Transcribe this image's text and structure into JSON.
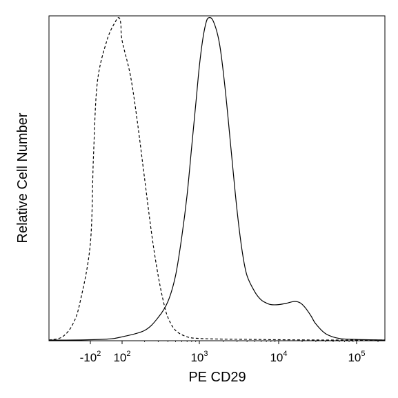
{
  "chart_data": {
    "type": "line",
    "title": "",
    "xlabel": "PE CD29",
    "ylabel": "Relative Cell Number",
    "x_scale": "biexponential",
    "xlim": [
      -500,
      250000
    ],
    "ylim": [
      0,
      1
    ],
    "grid": false,
    "legend": "none",
    "x_ticks": [
      {
        "base": "-10",
        "exp": "2",
        "value": -100
      },
      {
        "base": "10",
        "exp": "2",
        "value": 100
      },
      {
        "base": "10",
        "exp": "3",
        "value": 1000
      },
      {
        "base": "10",
        "exp": "4",
        "value": 10000
      },
      {
        "base": "10",
        "exp": "5",
        "value": 100000
      }
    ],
    "series": [
      {
        "style": "dashed",
        "color": "#000000",
        "x": [
          -500,
          -300,
          -200,
          -150,
          -100,
          -60,
          -30,
          0,
          30,
          60,
          80,
          100,
          130,
          160,
          200,
          250,
          300,
          350,
          400,
          500,
          700,
          1000,
          2000,
          5000,
          10000,
          50000,
          250000
        ],
        "y": [
          0.0,
          0.01,
          0.05,
          0.12,
          0.3,
          0.57,
          0.8,
          0.93,
          0.99,
          1.0,
          0.98,
          0.93,
          0.82,
          0.68,
          0.5,
          0.32,
          0.2,
          0.12,
          0.07,
          0.03,
          0.01,
          0.005,
          0.003,
          0.002,
          0.001,
          0.0,
          0.0
        ]
      },
      {
        "style": "solid",
        "color": "#000000",
        "x": [
          -500,
          -200,
          0,
          100,
          200,
          300,
          400,
          500,
          600,
          700,
          800,
          900,
          1000,
          1100,
          1200,
          1300,
          1500,
          1800,
          2100,
          2500,
          3000,
          3500,
          4000,
          5000,
          6000,
          7000,
          8000,
          10000,
          13000,
          16000,
          19000,
          22000,
          26000,
          30000,
          40000,
          60000,
          100000,
          250000
        ],
        "y": [
          0.0,
          0.0,
          0.003,
          0.01,
          0.03,
          0.07,
          0.12,
          0.2,
          0.32,
          0.45,
          0.6,
          0.73,
          0.85,
          0.93,
          0.98,
          1.0,
          0.99,
          0.92,
          0.79,
          0.6,
          0.4,
          0.27,
          0.2,
          0.15,
          0.125,
          0.115,
          0.11,
          0.11,
          0.115,
          0.12,
          0.115,
          0.1,
          0.075,
          0.05,
          0.02,
          0.005,
          0.002,
          0.0
        ]
      }
    ]
  }
}
